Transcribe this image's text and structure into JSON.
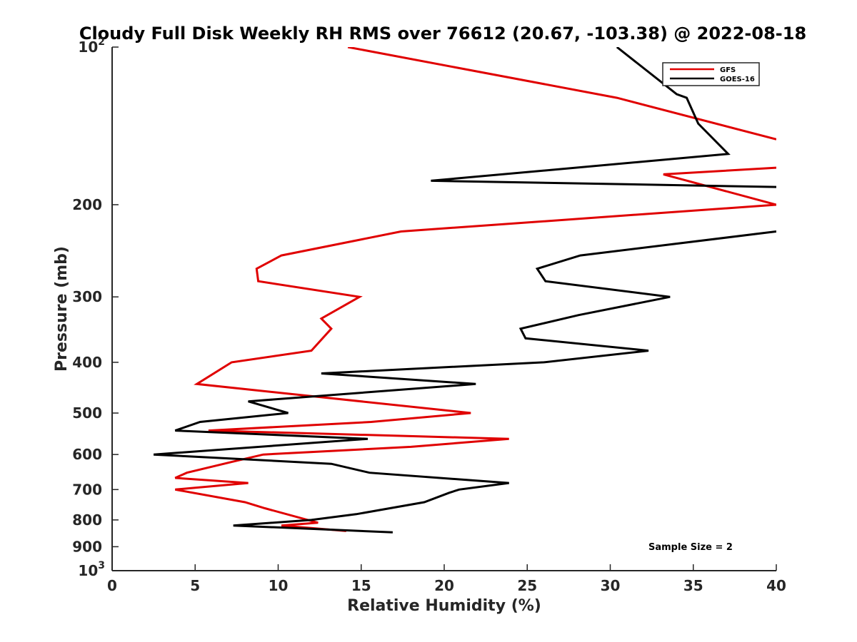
{
  "chart_data": {
    "type": "line",
    "title": "Cloudy Full Disk Weekly RH RMS over 76612 (20.67, -103.38) @ 2022-08-18",
    "xlabel": "Relative Humidity (%)",
    "ylabel": "Pressure (mb)",
    "xlim": [
      0,
      40
    ],
    "ylim": [
      100,
      1000
    ],
    "y_scale": "log",
    "y_reversed": true,
    "x_ticks": [
      {
        "value": 0,
        "label": "0"
      },
      {
        "value": 5,
        "label": "5"
      },
      {
        "value": 10,
        "label": "10"
      },
      {
        "value": 15,
        "label": "15"
      },
      {
        "value": 20,
        "label": "20"
      },
      {
        "value": 25,
        "label": "25"
      },
      {
        "value": 30,
        "label": "30"
      },
      {
        "value": 35,
        "label": "35"
      },
      {
        "value": 40,
        "label": "40"
      }
    ],
    "y_ticks": [
      {
        "value": 100,
        "base": "10",
        "exp": "2"
      },
      {
        "value": 200,
        "label": "200"
      },
      {
        "value": 300,
        "label": "300"
      },
      {
        "value": 400,
        "label": "400"
      },
      {
        "value": 500,
        "label": "500"
      },
      {
        "value": 600,
        "label": "600"
      },
      {
        "value": 700,
        "label": "700"
      },
      {
        "value": 800,
        "label": "800"
      },
      {
        "value": 900,
        "label": "900"
      },
      {
        "value": 1000,
        "base": "10",
        "exp": "3"
      }
    ],
    "legend_position": "top-right",
    "annotation": "Sample Size = 2",
    "series": [
      {
        "name": "GFS",
        "color": "#e00000",
        "points": [
          [
            14.2,
            100
          ],
          [
            30.4,
            125
          ],
          [
            40,
            150
          ],
          [
            null,
            null
          ],
          [
            40,
            170
          ],
          [
            33.2,
            175
          ],
          [
            40,
            200
          ],
          [
            17.4,
            225
          ],
          [
            10.2,
            250
          ],
          [
            8.7,
            265
          ],
          [
            8.8,
            280
          ],
          [
            14.9,
            300
          ],
          [
            12.6,
            330
          ],
          [
            13.2,
            345
          ],
          [
            12.0,
            380
          ],
          [
            7.2,
            400
          ],
          [
            5.1,
            440
          ],
          [
            21.6,
            500
          ],
          [
            15.6,
            520
          ],
          [
            5.8,
            540
          ],
          [
            23.9,
            560
          ],
          [
            18.0,
            580
          ],
          [
            9.1,
            600
          ],
          [
            7.2,
            620
          ],
          [
            4.5,
            650
          ],
          [
            3.8,
            665
          ],
          [
            8.2,
            680
          ],
          [
            3.8,
            700
          ],
          [
            8.0,
            740
          ],
          [
            9.2,
            760
          ],
          [
            12.4,
            810
          ],
          [
            10.2,
            820
          ],
          [
            14.1,
            840
          ]
        ]
      },
      {
        "name": "GOES-16",
        "color": "#000000",
        "points": [
          [
            30.4,
            100
          ],
          [
            34.0,
            123
          ],
          [
            34.6,
            125
          ],
          [
            35.3,
            140
          ],
          [
            37.1,
            160
          ],
          [
            19.2,
            180
          ],
          [
            40,
            185
          ],
          [
            null,
            null
          ],
          [
            40,
            225
          ],
          [
            39.5,
            226
          ],
          [
            28.2,
            250
          ],
          [
            25.6,
            265
          ],
          [
            26.1,
            280
          ],
          [
            33.6,
            300
          ],
          [
            28.1,
            325
          ],
          [
            24.6,
            345
          ],
          [
            24.9,
            360
          ],
          [
            32.3,
            380
          ],
          [
            26.0,
            400
          ],
          [
            12.6,
            420
          ],
          [
            21.9,
            440
          ],
          [
            8.2,
            475
          ],
          [
            10.6,
            500
          ],
          [
            5.3,
            520
          ],
          [
            3.8,
            540
          ],
          [
            15.4,
            560
          ],
          [
            2.5,
            600
          ],
          [
            13.2,
            625
          ],
          [
            15.5,
            650
          ],
          [
            23.9,
            680
          ],
          [
            20.9,
            700
          ],
          [
            20.3,
            710
          ],
          [
            18.8,
            740
          ],
          [
            14.7,
            780
          ],
          [
            12.0,
            800
          ],
          [
            7.3,
            820
          ],
          [
            16.9,
            845
          ]
        ]
      }
    ]
  }
}
